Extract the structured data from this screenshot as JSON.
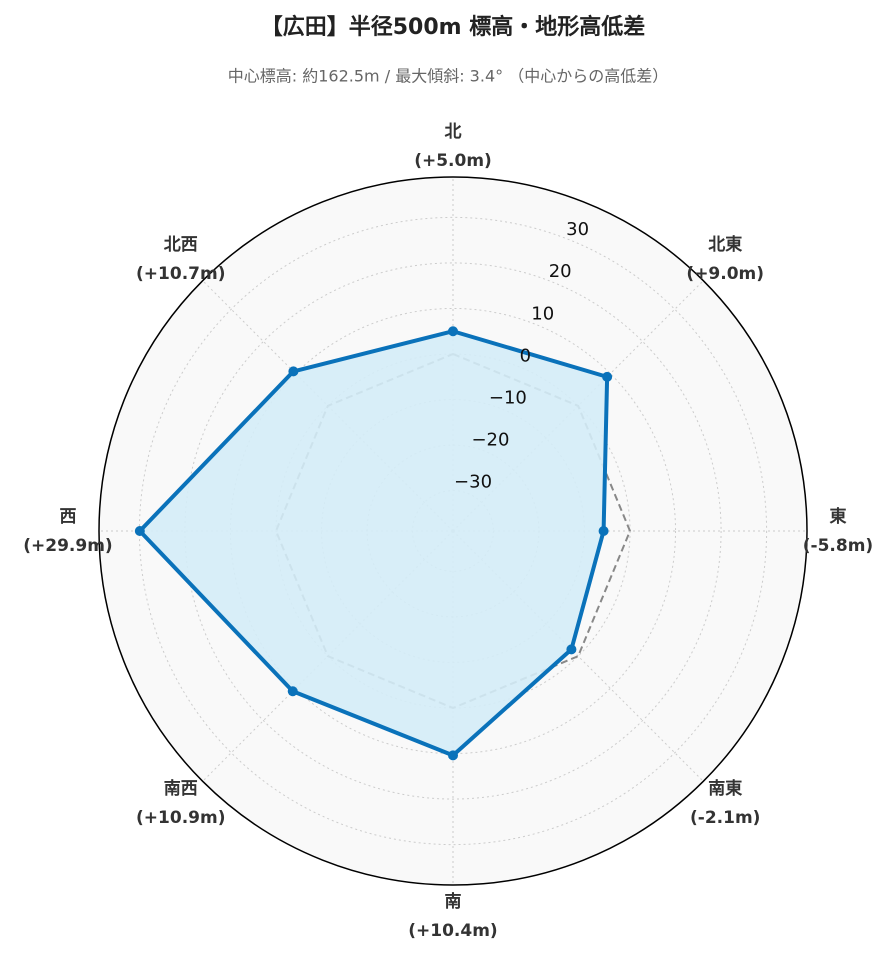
{
  "chart_data": {
    "type": "radar",
    "title": "【広田】半径500m 標高・地形高低差",
    "subtitle": "中心標高: 約162.5m / 最大傾斜: 3.4° （中心からの高低差）",
    "categories": [
      "北",
      "北東",
      "東",
      "南東",
      "南",
      "南西",
      "西",
      "北西"
    ],
    "values": [
      5.0,
      9.0,
      -5.8,
      -2.1,
      10.4,
      10.9,
      29.9,
      10.7
    ],
    "value_labels": [
      "(+5.0m)",
      "(+9.0m)",
      "(-5.8m)",
      "(-2.1m)",
      "(+10.4m)",
      "(+10.9m)",
      "(+29.9m)",
      "(+10.7m)"
    ],
    "color": "#0a72ba",
    "fill_color": "#d4ecf7",
    "ylim": [
      -38.87,
      38.87
    ],
    "yticks": [
      {
        "value": -30,
        "label": "−30"
      },
      {
        "value": -20,
        "label": "−20"
      },
      {
        "value": -10,
        "label": "−10"
      },
      0,
      10,
      20,
      30
    ],
    "grid": true
  }
}
